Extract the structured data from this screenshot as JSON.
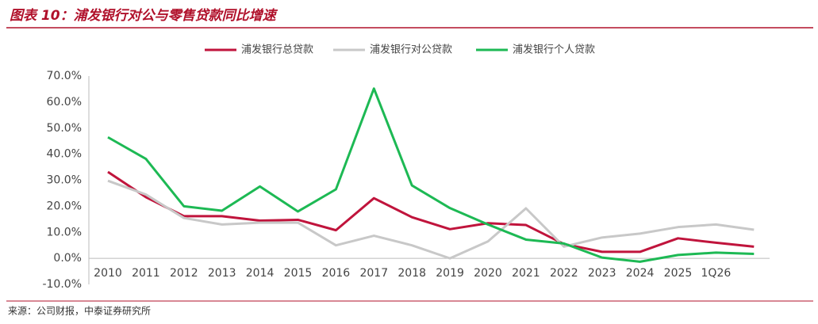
{
  "header": {
    "title": "图表 10：浦发银行对公与零售贷款同比增速"
  },
  "chart_data": {
    "type": "line",
    "categories": [
      "2010",
      "2011",
      "2012",
      "2013",
      "2014",
      "2015",
      "2016",
      "2017",
      "2018",
      "2019",
      "2020",
      "2021",
      "2022",
      "2023",
      "2024",
      "2025",
      "1Q26",
      null
    ],
    "series": [
      {
        "name": "浦发银行总贷款",
        "color": "#c0143c",
        "values": [
          33.2,
          23.5,
          16.2,
          16.2,
          14.5,
          14.8,
          10.8,
          23.1,
          15.8,
          11.2,
          13.5,
          12.8,
          5.5,
          2.5,
          2.5,
          7.7,
          6.0,
          4.5
        ]
      },
      {
        "name": "浦发银行对公贷款",
        "color": "#c8c8c8",
        "values": [
          29.8,
          24.5,
          15.5,
          13.0,
          13.7,
          13.7,
          5.0,
          8.7,
          5.0,
          0,
          6.5,
          19.2,
          4.5,
          8.0,
          9.5,
          12.0,
          13.0,
          11.0
        ]
      },
      {
        "name": "浦发银行个人贷款",
        "color": "#1db954",
        "values": [
          46.5,
          38.2,
          20.0,
          18.3,
          27.6,
          18.0,
          26.5,
          65.2,
          28.0,
          19.3,
          13.0,
          7.2,
          5.7,
          0.3,
          -1.3,
          1.3,
          2.2,
          1.7
        ]
      }
    ],
    "ylim": [
      -10,
      70
    ],
    "yticks": [
      {
        "value": -10,
        "label": "-10.0%"
      },
      {
        "value": 0,
        "label": "0.0%"
      },
      {
        "value": 10,
        "label": "10.0%"
      },
      {
        "value": 20,
        "label": "20.0%"
      },
      {
        "value": 30,
        "label": "30.0%"
      },
      {
        "value": 40,
        "label": "40.0%"
      },
      {
        "value": 50,
        "label": "50.0%"
      },
      {
        "value": 60,
        "label": "60.0%"
      },
      {
        "value": 70,
        "label": "70.0%"
      }
    ],
    "legend": "top"
  },
  "footer": {
    "source": "来源：公司财报，中泰证券研究所"
  }
}
